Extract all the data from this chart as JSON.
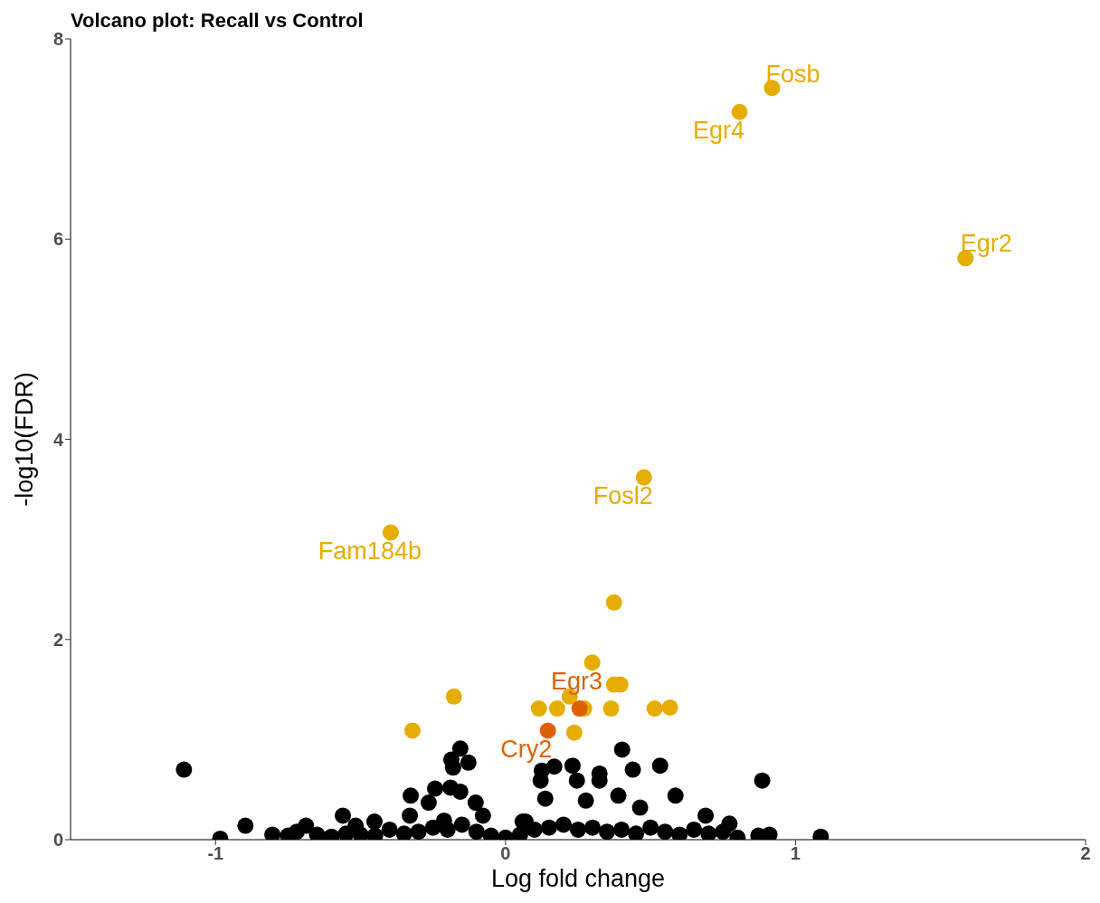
{
  "chart_data": {
    "type": "scatter",
    "title": "Volcano plot: Recall vs Control",
    "xlabel": "Log fold change",
    "ylabel": "-log10(FDR)",
    "xlim": [
      -1.5,
      2
    ],
    "xticks": [
      -1,
      0,
      1,
      2
    ],
    "ylim": [
      0,
      8
    ],
    "yticks": [
      0,
      2,
      4,
      6,
      8
    ],
    "grid": false,
    "legend": false,
    "marker": "circle",
    "series": [
      {
        "color": "#000000",
        "x": [
          -1.109,
          -0.984,
          -0.897,
          -0.804,
          -0.688,
          -0.561,
          -0.517,
          -0.452,
          -0.327,
          -0.33,
          -0.243,
          -0.265,
          -0.19,
          -0.156,
          -0.187,
          -0.128,
          -0.181,
          -0.156,
          -0.103,
          -0.078,
          -0.212,
          0.059,
          0.402,
          0.533,
          0.439,
          0.885,
          0.586,
          0.389,
          0.324,
          0.324,
          0.231,
          0.168,
          0.125,
          0.121,
          0.246,
          0.137,
          0.277,
          0.464,
          0.69,
          0.772,
          0.069,
          0.91,
          1.087,
          0.872,
          -0.75,
          -0.72,
          -0.65,
          -0.6,
          -0.55,
          -0.5,
          -0.45,
          -0.4,
          -0.35,
          -0.3,
          -0.25,
          -0.2,
          -0.15,
          -0.1,
          -0.05,
          0.0,
          0.05,
          0.1,
          0.15,
          0.2,
          0.25,
          0.3,
          0.35,
          0.4,
          0.45,
          0.5,
          0.55,
          0.6,
          0.65,
          0.7,
          0.75,
          0.8
        ],
        "values": [
          0.7,
          0.01,
          0.14,
          0.05,
          0.14,
          0.24,
          0.14,
          0.18,
          0.44,
          0.24,
          0.51,
          0.37,
          0.52,
          0.91,
          0.8,
          0.77,
          0.72,
          0.48,
          0.37,
          0.24,
          0.19,
          0.18,
          0.9,
          0.74,
          0.7,
          0.59,
          0.44,
          0.44,
          0.66,
          0.59,
          0.74,
          0.73,
          0.69,
          0.59,
          0.59,
          0.41,
          0.39,
          0.32,
          0.24,
          0.16,
          0.18,
          0.05,
          0.03,
          0.04,
          0.04,
          0.08,
          0.05,
          0.03,
          0.06,
          0.05,
          0.04,
          0.1,
          0.06,
          0.08,
          0.12,
          0.1,
          0.15,
          0.08,
          0.04,
          0.02,
          0.05,
          0.1,
          0.12,
          0.15,
          0.1,
          0.12,
          0.08,
          0.1,
          0.06,
          0.12,
          0.08,
          0.05,
          0.1,
          0.06,
          0.08,
          0.02
        ]
      },
      {
        "color": "#e6ac00",
        "x": [
          0.919,
          0.807,
          1.586,
          0.477,
          -0.396,
          0.374,
          0.299,
          0.374,
          0.396,
          -0.178,
          0.221,
          0.115,
          0.178,
          0.271,
          0.364,
          0.514,
          0.567,
          -0.321,
          0.237
        ],
        "values": [
          7.51,
          7.27,
          5.81,
          3.62,
          3.07,
          2.37,
          1.77,
          1.55,
          1.55,
          1.43,
          1.43,
          1.31,
          1.31,
          1.31,
          1.31,
          1.31,
          1.32,
          1.09,
          1.07
        ]
      },
      {
        "color": "#dd6100",
        "x": [
          0.255,
          0.146
        ],
        "values": [
          1.31,
          1.09
        ]
      }
    ],
    "annotations": [
      {
        "text": "Fosb",
        "x": 0.919,
        "y": 7.51
      },
      {
        "text": "Egr4",
        "x": 0.807,
        "y": 7.27
      },
      {
        "text": "Egr2",
        "x": 1.586,
        "y": 5.81
      },
      {
        "text": "Fosl2",
        "x": 0.477,
        "y": 3.62
      },
      {
        "text": "Fam184b",
        "x": -0.396,
        "y": 3.07
      },
      {
        "text": "Egr3",
        "x": 0.255,
        "y": 1.31
      },
      {
        "text": "Cry2",
        "x": 0.146,
        "y": 1.09
      }
    ]
  }
}
